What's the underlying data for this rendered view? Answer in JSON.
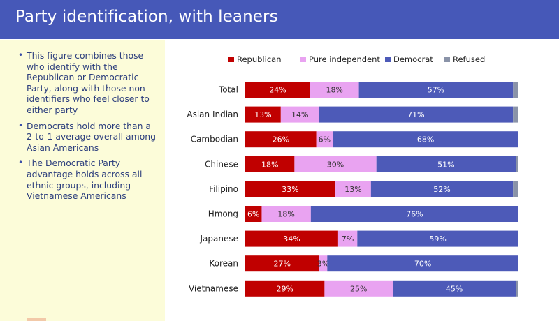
{
  "header": {
    "title": "Party identification, with leaners"
  },
  "sidebar": {
    "bullets": [
      "This figure combines those who identify with the Republican or Democratic Party, along with those non-identifiers who feel closer to either party",
      "Democrats hold more than a 2-to-1 average overall among Asian Americans",
      "The Democratic Party advantage holds across all ethnic groups, including Vietnamese Americans"
    ],
    "bullet_glyph": "•"
  },
  "colors": {
    "header_bg": "#4658b8",
    "sidebar_bg": "#fcfcd9",
    "republican": "#c00000",
    "independent": "#e9a3f1",
    "democrat": "#4d5ab8",
    "refused": "#8a93a8"
  },
  "chart_data": {
    "type": "bar",
    "orientation": "horizontal",
    "stacked": true,
    "title": "Party identification, with leaners",
    "categories": [
      "Total",
      "Asian Indian",
      "Cambodian",
      "Chinese",
      "Filipino",
      "Hmong",
      "Japanese",
      "Korean",
      "Vietnamese"
    ],
    "series": [
      {
        "name": "Republican",
        "values": [
          24,
          13,
          26,
          18,
          33,
          6,
          34,
          27,
          29
        ],
        "labels": [
          "24%",
          "13%",
          "26%",
          "18%",
          "33%",
          "6%",
          "34%",
          "27%",
          "29%"
        ]
      },
      {
        "name": "Pure independent",
        "values": [
          18,
          14,
          6,
          30,
          13,
          18,
          7,
          3,
          25
        ],
        "labels": [
          "18%",
          "14%",
          "6%",
          "30%",
          "13%",
          "18%",
          "7%",
          "3%",
          "25%"
        ]
      },
      {
        "name": "Democrat",
        "values": [
          57,
          71,
          68,
          51,
          52,
          76,
          59,
          70,
          45
        ],
        "labels": [
          "57%",
          "71%",
          "68%",
          "51%",
          "52%",
          "76%",
          "59%",
          "70%",
          "45%"
        ]
      },
      {
        "name": "Refused",
        "values": [
          2,
          2,
          0,
          1,
          2,
          0,
          0,
          0,
          1
        ],
        "labels": [
          "",
          "",
          "",
          "",
          "",
          "",
          "",
          "",
          ""
        ]
      }
    ],
    "xlim": [
      0,
      100
    ],
    "legend": "top",
    "grid": false
  }
}
